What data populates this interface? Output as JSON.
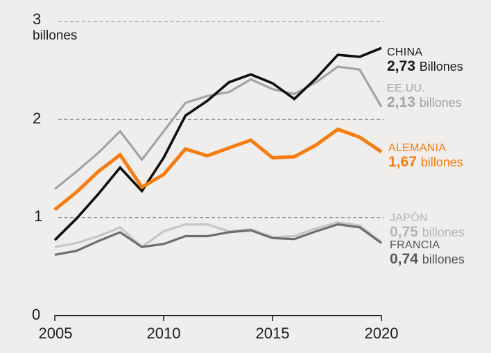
{
  "chart_data": {
    "type": "line",
    "title": "",
    "background_color": "#efeeec",
    "grid_color": "#828282",
    "axis_color": "#222222",
    "text_color": "#1d1d1d",
    "grid": "dashed horizontal lines at 1, 2, 3",
    "legend_position": "direct labels at right edge of lines",
    "x_axis": {
      "tick_labels": [
        "2005",
        "2010",
        "2015",
        "2020"
      ],
      "tick_years": [
        2005,
        2010,
        2015,
        2020
      ],
      "xlim": [
        2005,
        2020
      ]
    },
    "y_axis": {
      "tick_labels": [
        "0",
        "1",
        "2",
        "3"
      ],
      "unit": "billones",
      "ylim": [
        0,
        3
      ]
    },
    "x": [
      2005,
      2006,
      2007,
      2008,
      2009,
      2010,
      2011,
      2012,
      2013,
      2014,
      2015,
      2016,
      2017,
      2018,
      2019,
      2020
    ],
    "series": [
      {
        "id": "china",
        "name": "CHINA",
        "value_label": "2,73",
        "unit_label": "Billones",
        "final_value": 2.73,
        "color": "#0e0e0e",
        "label_color": "#161616",
        "width": 3.6,
        "values": [
          0.77,
          0.99,
          1.24,
          1.51,
          1.27,
          1.61,
          2.04,
          2.19,
          2.38,
          2.46,
          2.37,
          2.21,
          2.42,
          2.66,
          2.64,
          2.73
        ]
      },
      {
        "id": "eeuu",
        "name": "EE.UU.",
        "value_label": "2,13",
        "unit_label": "billones",
        "final_value": 2.13,
        "color": "#a3a3a3",
        "label_color": "#a3a3a3",
        "width": 3.2,
        "values": [
          1.29,
          1.47,
          1.66,
          1.88,
          1.59,
          1.88,
          2.17,
          2.24,
          2.28,
          2.41,
          2.31,
          2.26,
          2.38,
          2.54,
          2.51,
          2.13
        ]
      },
      {
        "id": "alemania",
        "name": "ALEMANIA",
        "value_label": "1,67",
        "unit_label": "billones",
        "final_value": 1.67,
        "color": "#f57d11",
        "label_color": "#f57d11",
        "width": 5,
        "values": [
          1.08,
          1.26,
          1.47,
          1.64,
          1.31,
          1.44,
          1.7,
          1.63,
          1.71,
          1.79,
          1.61,
          1.62,
          1.74,
          1.9,
          1.82,
          1.67
        ]
      },
      {
        "id": "japon",
        "name": "JAPÓN",
        "value_label": "0,75",
        "unit_label": "billones",
        "final_value": 0.75,
        "color": "#c6c6c6",
        "label_color": "#b5b5b5",
        "width": 3.2,
        "values": [
          0.7,
          0.74,
          0.81,
          0.9,
          0.7,
          0.86,
          0.93,
          0.93,
          0.86,
          0.88,
          0.8,
          0.81,
          0.89,
          0.95,
          0.92,
          0.75
        ]
      },
      {
        "id": "francia",
        "name": "FRANCIA",
        "value_label": "0,74",
        "unit_label": "billones",
        "final_value": 0.74,
        "color": "#6d6d6d",
        "label_color": "#575757",
        "width": 3.2,
        "values": [
          0.62,
          0.66,
          0.76,
          0.85,
          0.7,
          0.73,
          0.81,
          0.81,
          0.85,
          0.87,
          0.79,
          0.78,
          0.86,
          0.93,
          0.9,
          0.74
        ]
      }
    ],
    "draw_order": [
      3,
      4,
      1,
      0,
      2
    ]
  }
}
